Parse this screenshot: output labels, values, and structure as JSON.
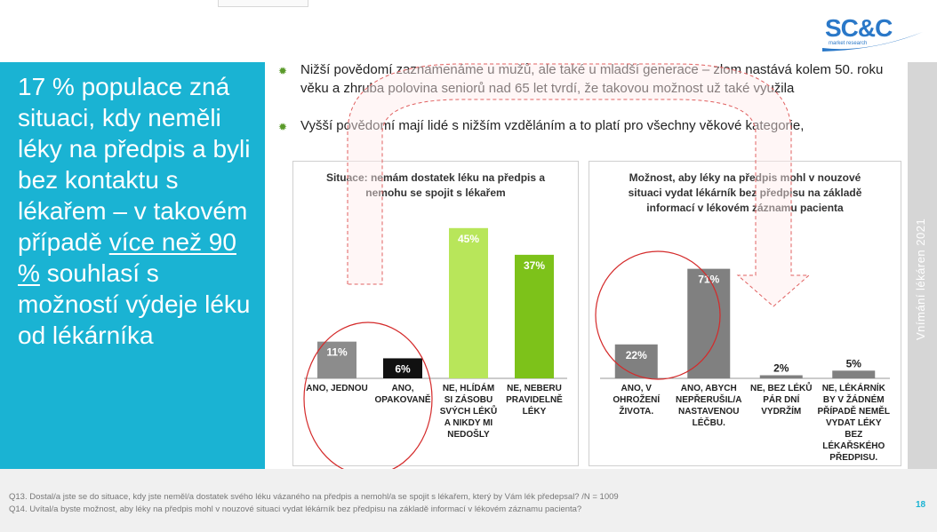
{
  "logo": {
    "text": "SC&C",
    "subtext": "market research"
  },
  "left_panel": {
    "text_before": "17 % populace zná situaci, kdy neměli léky na předpis a byli bez kontaktu s lékařem – v takovém případě",
    "text_underlined": "více než 90 %",
    "text_after": "souhlasí s možností výdeje léku od lékárníka"
  },
  "side_label": "Vnímání lékáren 2021",
  "bullets": [
    "Nižší povědomí zaznamenáme u mužů, ale také u mladší generace – zlom nastává kolem 50. roku věku a zhruba polovina seniorů nad 65 let tvrdí, že takovou možnost už také využila",
    "Vyšší povědomí mají lidé s nižším vzděláním a to platí pro všechny věkové kategorie,"
  ],
  "chart_data": [
    {
      "type": "bar",
      "title": "Situace: nemám dostatek léku na předpis a nemohu se spojit s lékařem",
      "categories": [
        "ANO, JEDNOU",
        "ANO, OPAKOVANĚ",
        "NE, HLÍDÁM SI ZÁSOBU SVÝCH LÉKŮ A NIKDY MI NEDOŠLY",
        "NE, NEBERU PRAVIDELNĚ LÉKY"
      ],
      "values": [
        11,
        6,
        45,
        37
      ],
      "value_labels": [
        "11%",
        "6%",
        "45%",
        "37%"
      ],
      "colors": [
        "#8c8c8c",
        "#111111",
        "#b8e65a",
        "#7dc21a"
      ],
      "label_colors": [
        "#ffffff",
        "#ffffff",
        "#ffffff",
        "#ffffff"
      ],
      "ylim": [
        0,
        50
      ],
      "grid": false
    },
    {
      "type": "bar",
      "title": "Možnost, aby léky na předpis mohl v nouzové situaci vydat lékárník bez předpisu na základě informací v lékovém záznamu pacienta",
      "categories": [
        "ANO, V OHROŽENÍ ŽIVOTA.",
        "ANO, ABYCH NEPŘERUŠIL/A NASTAVENOU LÉČBU.",
        "NE, BEZ LÉKŮ PÁR DNÍ VYDRŽÍM",
        "NE, LÉKÁRNÍK BY V ŽÁDNÉM PŘÍPADĚ NEMĚL VYDAT LÉKY BEZ LÉKAŘSKÉHO PŘEDPISU."
      ],
      "values": [
        22,
        71,
        2,
        5
      ],
      "value_labels": [
        "22%",
        "71%",
        "2%",
        "5%"
      ],
      "colors": [
        "#808080",
        "#808080",
        "#808080",
        "#808080"
      ],
      "label_colors": [
        "#ffffff",
        "#ffffff",
        "#222222",
        "#222222"
      ],
      "ylim": [
        0,
        80
      ],
      "grid": false
    }
  ],
  "footnotes": [
    "Q13. Dostal/a jste se do situace, kdy jste neměl/a dostatek svého léku vázaného na předpis a nemohl/a se spojit s lékařem, který by Vám lék předepsal? /N =  1009",
    "Q14. Uvítal/a byste možnost, aby léky na předpis mohl v nouzové situaci vydat lékárník bez předpisu na základě informací v lékovém záznamu pacienta?"
  ],
  "page_number": "18",
  "accent_color": "#1ab3d3"
}
